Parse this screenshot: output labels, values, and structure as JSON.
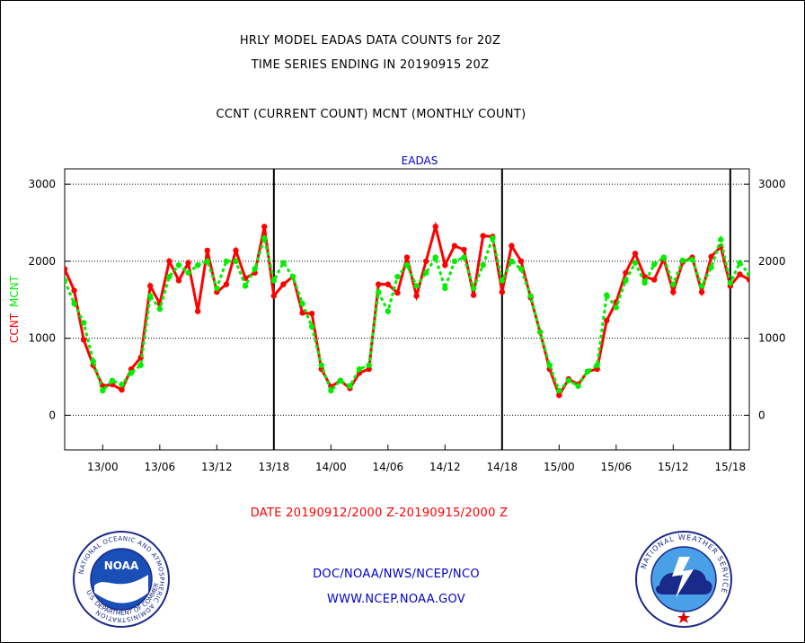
{
  "header": {
    "title_line1": "HRLY MODEL EADAS DATA COUNTS for 20Z",
    "title_line2": "TIME SERIES ENDING IN 20190915 20Z",
    "subtitle": "CCNT (CURRENT COUNT) MCNT (MONTHLY COUNT)"
  },
  "footer": {
    "date_range": "DATE 20190912/2000 Z-20190915/2000 Z",
    "org": "DOC/NOAA/NWS/NCEP/NCO",
    "url": "WWW.NCEP.NOAA.GOV"
  },
  "logos": {
    "noaa_ring_text": "NATIONAL OCEANIC AND ATMOSPHERIC ADMINISTRATION",
    "noaa_bottom_text": "U.S. DEPARTMENT OF COMMERCE",
    "noaa_center": "NOAA",
    "nws_ring_text": "NATIONAL WEATHER SERVICE"
  },
  "colors": {
    "ccnt": "#ff0000",
    "mcnt": "#00ee00",
    "title_plot": "#0000cc",
    "date_text": "#ff0000",
    "footer_text": "#0000cc"
  },
  "chart_data": {
    "type": "line",
    "title": "EADAS",
    "ylabel_ccnt": "CCNT",
    "ylabel_mcnt": "MCNT",
    "ylim": [
      -450,
      3200
    ],
    "yticks": [
      0,
      1000,
      2000,
      3000
    ],
    "x_tick_labels": [
      "13/00",
      "13/06",
      "13/12",
      "13/18",
      "14/00",
      "14/06",
      "14/12",
      "14/18",
      "15/00",
      "15/06",
      "15/12",
      "15/18"
    ],
    "x_tick_hours": [
      4,
      10,
      16,
      22,
      28,
      34,
      40,
      46,
      52,
      58,
      64,
      70
    ],
    "x_range_hours": [
      0,
      72
    ],
    "day_divider_hours": [
      22,
      46,
      70
    ],
    "grid": true,
    "x_hours": [
      0,
      1,
      2,
      3,
      4,
      5,
      6,
      7,
      8,
      9,
      10,
      11,
      12,
      13,
      14,
      15,
      16,
      17,
      18,
      19,
      20,
      21,
      22,
      23,
      24,
      25,
      26,
      27,
      28,
      29,
      30,
      31,
      32,
      33,
      34,
      35,
      36,
      37,
      38,
      39,
      40,
      41,
      42,
      43,
      44,
      45,
      46,
      47,
      48,
      49,
      50,
      51,
      52,
      53,
      54,
      55,
      56,
      57,
      58,
      59,
      60,
      61,
      62,
      63,
      64,
      65,
      66,
      67,
      68,
      69,
      70,
      71,
      72
    ],
    "series": [
      {
        "name": "CCNT",
        "values": [
          1900,
          1620,
          980,
          650,
          380,
          400,
          330,
          600,
          750,
          1680,
          1450,
          2000,
          1750,
          1980,
          1350,
          2140,
          1600,
          1700,
          2140,
          1780,
          1850,
          2450,
          1550,
          1700,
          1800,
          1330,
          1320,
          600,
          370,
          450,
          350,
          550,
          600,
          1700,
          1700,
          1590,
          2050,
          1550,
          2000,
          2450,
          1950,
          2200,
          2150,
          1560,
          2330,
          2320,
          1600,
          2200,
          2000,
          1530,
          1080,
          600,
          260,
          470,
          400,
          570,
          600,
          1230,
          1470,
          1850,
          2100,
          1800,
          1760,
          2030,
          1600,
          1990,
          2050,
          1600,
          2060,
          2190,
          1680,
          1830,
          1760
        ]
      },
      {
        "name": "MCNT",
        "values": [
          1750,
          1450,
          1200,
          700,
          320,
          450,
          400,
          550,
          650,
          1550,
          1380,
          1800,
          1950,
          1850,
          1950,
          2000,
          1650,
          2000,
          2000,
          1680,
          1900,
          2300,
          1750,
          1980,
          1800,
          1450,
          1150,
          650,
          320,
          450,
          380,
          600,
          650,
          1600,
          1350,
          1800,
          1950,
          1680,
          1850,
          2050,
          1650,
          2000,
          2050,
          1650,
          1950,
          2300,
          1750,
          2000,
          1900,
          1550,
          1080,
          650,
          320,
          450,
          380,
          570,
          650,
          1560,
          1400,
          1750,
          1980,
          1720,
          1960,
          2050,
          1700,
          2010,
          2020,
          1680,
          1920,
          2280,
          1720,
          1980,
          1830
        ]
      }
    ]
  }
}
